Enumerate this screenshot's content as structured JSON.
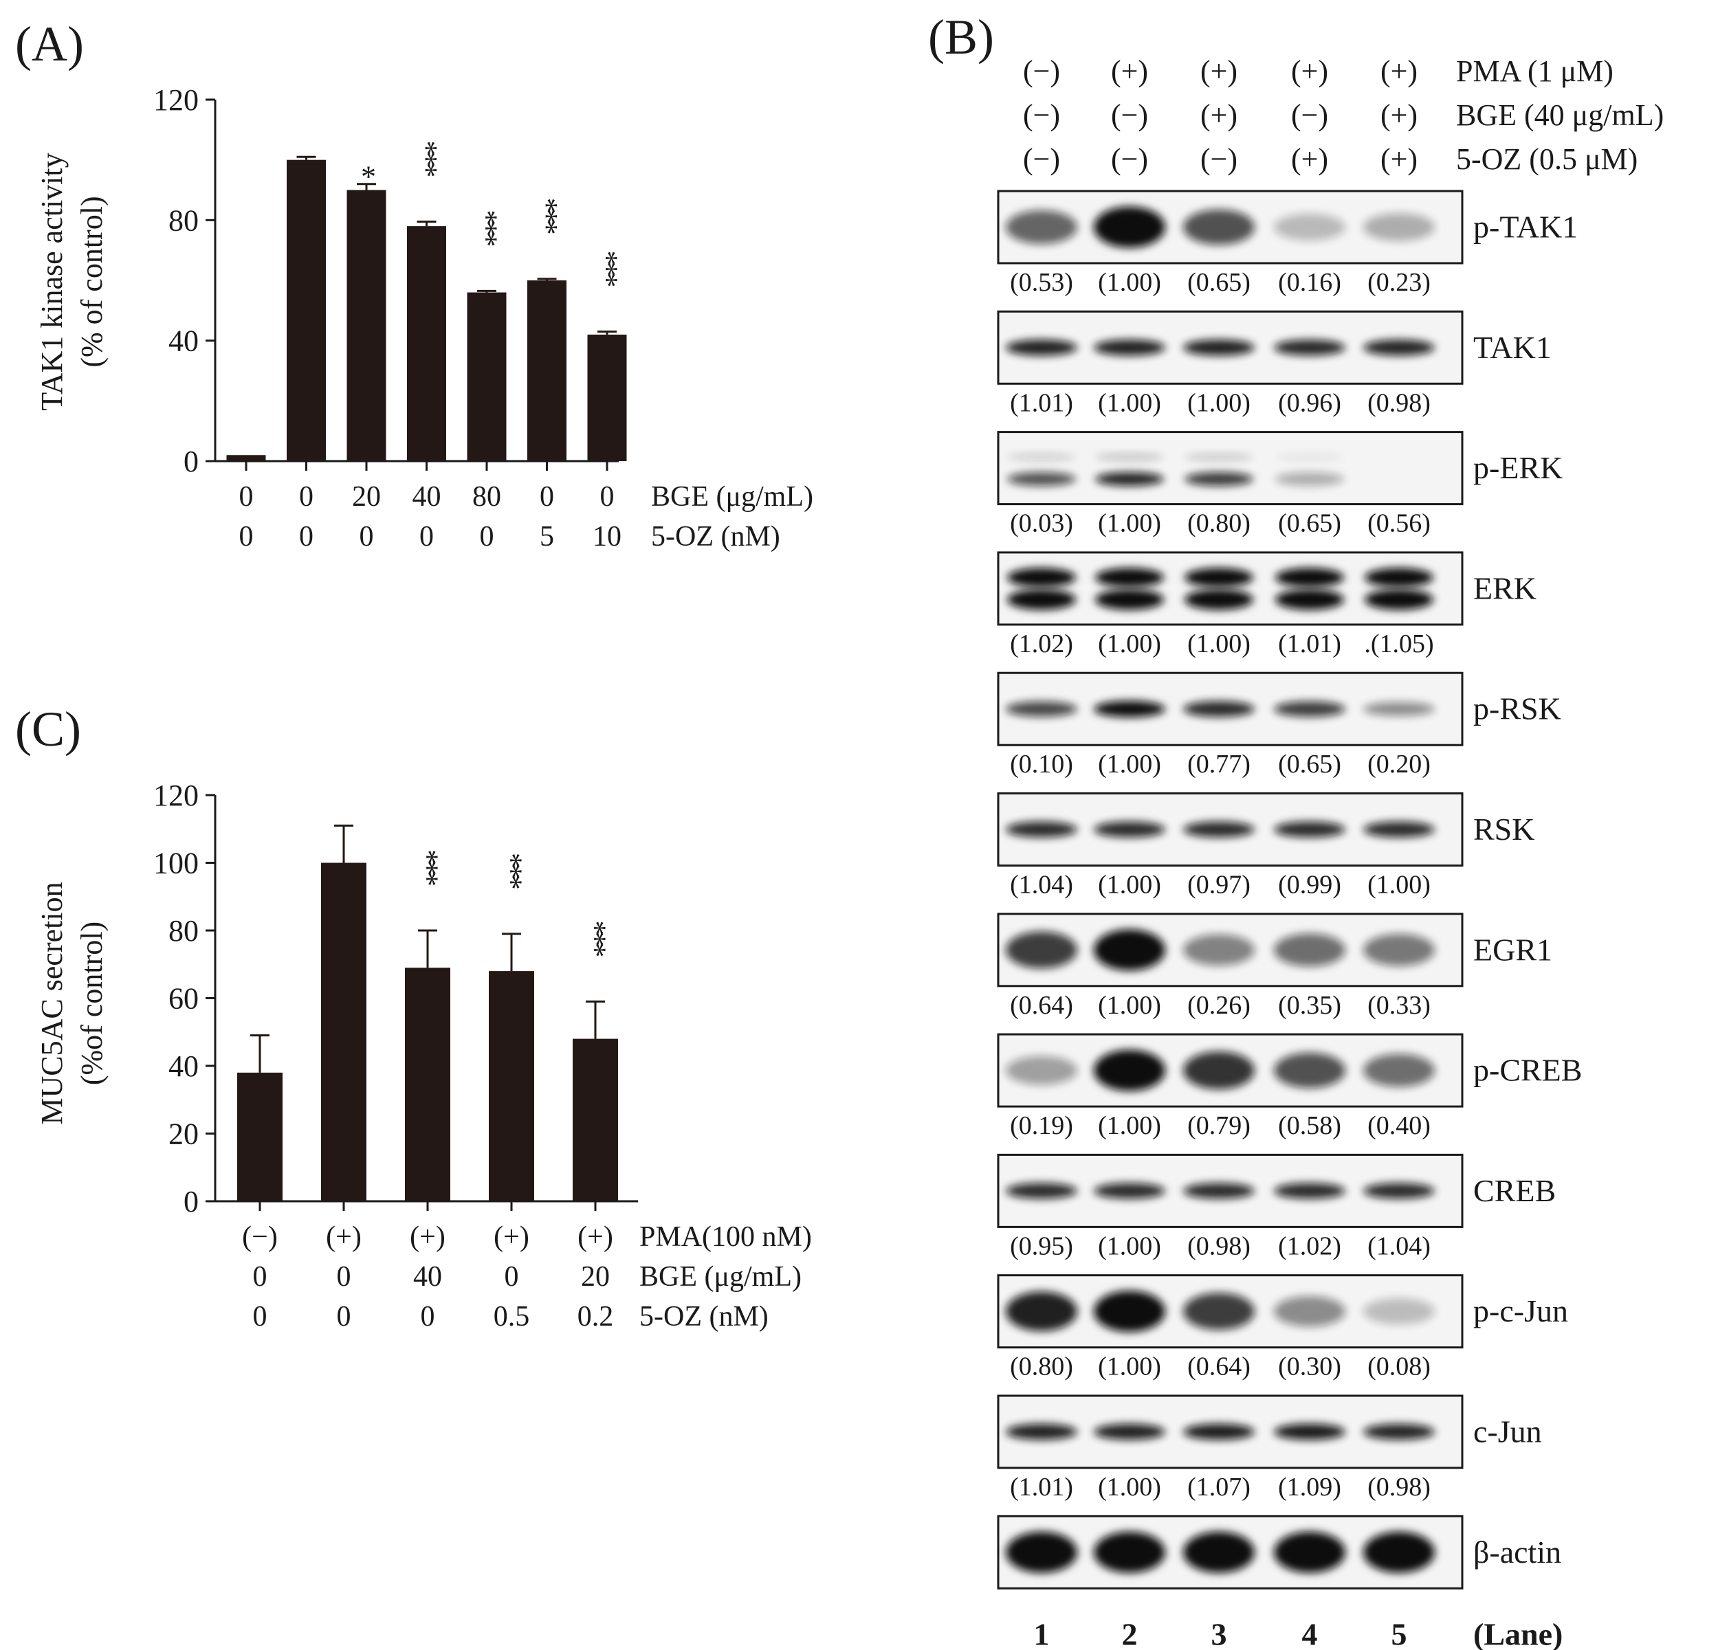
{
  "colors": {
    "bar": "#231815",
    "ink": "#1a1a1a",
    "blot_bg": "#f4f4f4",
    "band": "#111111"
  },
  "chart_data": [
    {
      "panel": "(A)",
      "type": "bar",
      "ylabel_lines": [
        "TAK1 kinase activity",
        "(% of control)"
      ],
      "yticks": [
        "0",
        "40",
        "80",
        "120"
      ],
      "ylim": [
        0,
        120
      ],
      "values": [
        2,
        100,
        90,
        78,
        56,
        60,
        42
      ],
      "errors": [
        0,
        1,
        2,
        1.5,
        0.5,
        0.5,
        1
      ],
      "significance": [
        "",
        "",
        "*",
        "***",
        "***",
        "***",
        "***"
      ],
      "condition_rows": [
        {
          "label": "BGE (μg/mL)",
          "values": [
            "0",
            "0",
            "20",
            "40",
            "80",
            "0",
            "0"
          ]
        },
        {
          "label": "5-OZ (nM)",
          "values": [
            "0",
            "0",
            "0",
            "0",
            "0",
            "5",
            "10"
          ]
        }
      ]
    },
    {
      "panel": "(C)",
      "type": "bar",
      "ylabel_lines": [
        "MUC5AC secretion",
        "(%of control)"
      ],
      "yticks": [
        "0",
        "20",
        "40",
        "60",
        "80",
        "100",
        "120"
      ],
      "ylim": [
        0,
        120
      ],
      "values": [
        38,
        100,
        69,
        68,
        48
      ],
      "errors": [
        11,
        11,
        11,
        11,
        11
      ],
      "significance": [
        "",
        "",
        "***",
        "***",
        "***"
      ],
      "condition_rows": [
        {
          "label": "PMA(100 nM)",
          "values": [
            "(−)",
            "(+)",
            "(+)",
            "(+)",
            "(+)"
          ]
        },
        {
          "label": "BGE (μg/mL)",
          "values": [
            "0",
            "0",
            "40",
            "0",
            "20"
          ]
        },
        {
          "label": "5-OZ (nM)",
          "values": [
            "0",
            "0",
            "0",
            "0.5",
            "0.2"
          ]
        }
      ]
    },
    {
      "panel": "(B)",
      "type": "table",
      "treatments": [
        {
          "label": "PMA (1 μM)",
          "values": [
            "(−)",
            "(+)",
            "(+)",
            "(+)",
            "(+)"
          ]
        },
        {
          "label": "BGE (40 μg/mL)",
          "values": [
            "(−)",
            "(−)",
            "(+)",
            "(−)",
            "(+)"
          ]
        },
        {
          "label": "5-OZ (0.5 μM)",
          "values": [
            "(−)",
            "(−)",
            "(−)",
            "(+)",
            "(+)"
          ]
        }
      ],
      "blots": [
        {
          "protein": "p-TAK1",
          "quant": [
            "(0.53)",
            "(1.00)",
            "(0.65)",
            "(0.16)",
            "(0.23)"
          ],
          "intensity": [
            0.55,
            1.0,
            0.65,
            0.12,
            0.18
          ]
        },
        {
          "protein": "TAK1",
          "quant": [
            "(1.01)",
            "(1.00)",
            "(1.00)",
            "(0.96)",
            "(0.98)"
          ],
          "intensity": [
            0.9,
            0.9,
            0.9,
            0.86,
            0.88
          ]
        },
        {
          "protein": "p-ERK",
          "quant": [
            "(0.03)",
            "(1.00)",
            "(0.80)",
            "(0.65)",
            "(0.56)"
          ],
          "intensity": [
            0.7,
            0.9,
            0.8,
            0.3,
            0.02
          ]
        },
        {
          "protein": "ERK",
          "quant": [
            "(1.02)",
            "(1.00)",
            "(1.00)",
            "(1.01)",
            ".(1.05)"
          ],
          "intensity": [
            1.0,
            1.0,
            1.0,
            1.0,
            1.0
          ]
        },
        {
          "protein": "p-RSK",
          "quant": [
            "(0.10)",
            "(1.00)",
            "(0.77)",
            "(0.65)",
            "(0.20)"
          ],
          "intensity": [
            0.7,
            1.0,
            0.85,
            0.75,
            0.35
          ]
        },
        {
          "protein": "RSK",
          "quant": [
            "(1.04)",
            "(1.00)",
            "(0.97)",
            "(0.99)",
            "(1.00)"
          ],
          "intensity": [
            0.85,
            0.85,
            0.85,
            0.85,
            0.85
          ]
        },
        {
          "protein": "EGR1",
          "quant": [
            "(0.64)",
            "(1.00)",
            "(0.26)",
            "(0.35)",
            "(0.33)"
          ],
          "intensity": [
            0.75,
            1.0,
            0.4,
            0.5,
            0.45
          ]
        },
        {
          "protein": "p-CREB",
          "quant": [
            "(0.19)",
            "(1.00)",
            "(0.79)",
            "(0.58)",
            "(0.40)"
          ],
          "intensity": [
            0.25,
            1.0,
            0.8,
            0.65,
            0.5
          ]
        },
        {
          "protein": "CREB",
          "quant": [
            "(0.95)",
            "(1.00)",
            "(0.98)",
            "(1.02)",
            "(1.04)"
          ],
          "intensity": [
            0.85,
            0.85,
            0.85,
            0.85,
            0.85
          ]
        },
        {
          "protein": "p-c-Jun",
          "quant": [
            "(0.80)",
            "(1.00)",
            "(0.64)",
            "(0.30)",
            "(0.08)"
          ],
          "intensity": [
            0.9,
            1.0,
            0.75,
            0.35,
            0.1
          ]
        },
        {
          "protein": "c-Jun",
          "quant": [
            "(1.01)",
            "(1.00)",
            "(1.07)",
            "(1.09)",
            "(0.98)"
          ],
          "intensity": [
            0.9,
            0.9,
            0.92,
            0.93,
            0.88
          ]
        },
        {
          "protein": "β-actin",
          "quant": [],
          "intensity": [
            1.0,
            1.0,
            1.0,
            1.0,
            1.0
          ]
        }
      ],
      "lanes": [
        "1",
        "2",
        "3",
        "4",
        "5"
      ],
      "lane_label": "(Lane)"
    }
  ]
}
